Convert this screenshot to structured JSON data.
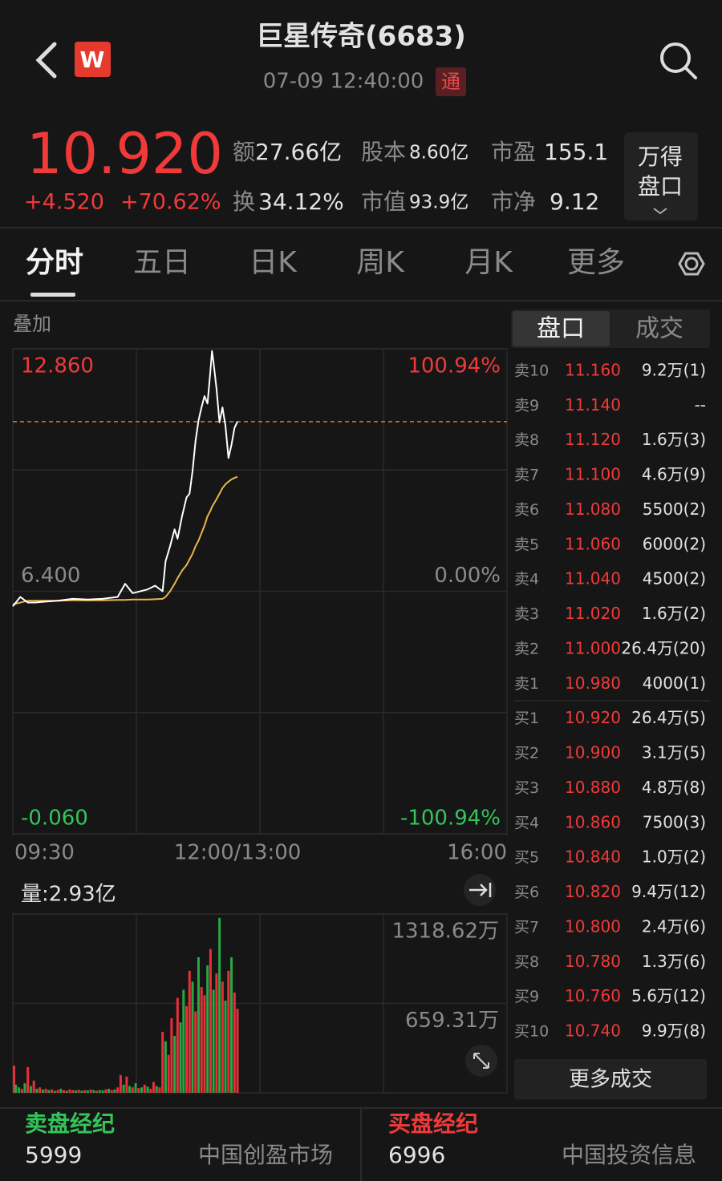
{
  "header": {
    "title": "巨星传奇(6683)",
    "timestamp": "07-09 12:40:00",
    "badge": "通",
    "logo": "W"
  },
  "quote": {
    "price": "10.920",
    "change": "+4.520",
    "change_pct": "+70.62%",
    "stats": [
      {
        "label": "额",
        "value": "27.66亿"
      },
      {
        "label": "股本",
        "value": "8.60亿"
      },
      {
        "label": "市盈",
        "value": "155.1"
      },
      {
        "label": "换",
        "value": "34.12%"
      },
      {
        "label": "市值",
        "value": "93.9亿"
      },
      {
        "label": "市净",
        "value": "9.12"
      }
    ],
    "panel_button": [
      "万得",
      "盘口"
    ]
  },
  "tabs": [
    "分时",
    "五日",
    "日K",
    "周K",
    "月K",
    "更多"
  ],
  "overlay_label": "叠加",
  "chart_data": [
    {
      "type": "line",
      "x": [
        0,
        5,
        10,
        15,
        20,
        30,
        40,
        50,
        60,
        70,
        75,
        80,
        90,
        95,
        100,
        102,
        105,
        108,
        110,
        113,
        116,
        118,
        120,
        122,
        124,
        126,
        128,
        130,
        132,
        133,
        134,
        136,
        138,
        140,
        142,
        144,
        146,
        148,
        150
      ],
      "series": [
        {
          "color": "#ffffff",
          "values": [
            6.0,
            6.25,
            6.1,
            6.1,
            6.12,
            6.15,
            6.2,
            6.18,
            6.2,
            6.25,
            6.6,
            6.35,
            6.45,
            6.55,
            6.4,
            7.2,
            7.6,
            8.05,
            7.8,
            8.4,
            8.9,
            9.0,
            9.6,
            10.4,
            10.95,
            11.3,
            11.6,
            11.4,
            12.3,
            12.8,
            12.5,
            11.8,
            10.9,
            11.3,
            10.8,
            9.95,
            10.3,
            10.75,
            10.92
          ]
        },
        {
          "color": "#e8b64c",
          "values": [
            6.05,
            6.1,
            6.15,
            6.15,
            6.15,
            6.15,
            6.16,
            6.16,
            6.16,
            6.17,
            6.17,
            6.18,
            6.18,
            6.19,
            6.2,
            6.25,
            6.4,
            6.6,
            6.75,
            6.95,
            7.1,
            7.25,
            7.4,
            7.6,
            7.75,
            7.95,
            8.15,
            8.4,
            8.55,
            8.65,
            8.72,
            8.85,
            9.0,
            9.15,
            9.25,
            9.32,
            9.38,
            9.42,
            9.45
          ]
        }
      ],
      "xlim": [
        0,
        330
      ],
      "xticks": [
        {
          "value": 0,
          "label": "09:30"
        },
        {
          "value": 150,
          "label": "12:00/13:00"
        },
        {
          "value": 330,
          "label": "16:00"
        }
      ],
      "ylim": [
        -0.06,
        12.86
      ],
      "yticks": [
        {
          "value": 12.86,
          "label": "12.860"
        },
        {
          "value": 6.4,
          "label": "6.400"
        },
        {
          "value": -0.06,
          "label": "-0.060"
        }
      ],
      "y2lim": [
        -100.94,
        100.94
      ],
      "y2ticks": [
        {
          "value": 100.94,
          "label": "100.94%"
        },
        {
          "value": 0,
          "label": "0.00%"
        },
        {
          "value": -100.94,
          "label": "-100.94%"
        }
      ],
      "reference_line": 10.92
    },
    {
      "type": "bar",
      "title": "量:2.93亿",
      "x": [
        0,
        2,
        4,
        6,
        8,
        10,
        12,
        14,
        16,
        18,
        20,
        22,
        24,
        26,
        28,
        30,
        32,
        34,
        36,
        38,
        40,
        42,
        44,
        46,
        48,
        50,
        52,
        54,
        56,
        58,
        60,
        62,
        64,
        66,
        68,
        70,
        72,
        74,
        76,
        78,
        80,
        82,
        84,
        86,
        88,
        90,
        92,
        94,
        96,
        98,
        100,
        102,
        104,
        106,
        108,
        110,
        112,
        114,
        116,
        118,
        120,
        122,
        124,
        126,
        128,
        130,
        132,
        134,
        136,
        138,
        140,
        142,
        144,
        146,
        148,
        150
      ],
      "values": [
        200,
        60,
        40,
        30,
        70,
        190,
        50,
        90,
        30,
        40,
        25,
        30,
        20,
        25,
        15,
        20,
        30,
        20,
        15,
        25,
        20,
        18,
        22,
        15,
        20,
        18,
        25,
        20,
        15,
        20,
        18,
        25,
        30,
        20,
        25,
        40,
        130,
        60,
        120,
        50,
        40,
        70,
        35,
        40,
        60,
        45,
        30,
        80,
        50,
        40,
        450,
        380,
        280,
        550,
        420,
        700,
        520,
        760,
        640,
        900,
        820,
        600,
        1000,
        780,
        720,
        940,
        1060,
        760,
        880,
        1290,
        820,
        680,
        900,
        1000,
        740,
        620
      ],
      "colors": [
        "#e8303a",
        "#27a844",
        "#27a844",
        "#e8303a",
        "#27a844",
        "#e8303a",
        "#27a844",
        "#e8303a",
        "#27a844",
        "#e8303a",
        "#27a844",
        "#e8303a",
        "#27a844",
        "#e8303a",
        "#27a844",
        "#e8303a",
        "#27a844",
        "#e8303a",
        "#27a844",
        "#e8303a",
        "#e8303a",
        "#27a844",
        "#e8303a",
        "#27a844",
        "#e8303a",
        "#27a844",
        "#e8303a",
        "#27a844",
        "#e8303a",
        "#27a844",
        "#27a844",
        "#e8303a",
        "#27a844",
        "#e8303a",
        "#27a844",
        "#e8303a",
        "#e8303a",
        "#27a844",
        "#e8303a",
        "#27a844",
        "#e8303a",
        "#27a844",
        "#e8303a",
        "#27a844",
        "#e8303a",
        "#27a844",
        "#e8303a",
        "#e8303a",
        "#27a844",
        "#e8303a",
        "#e8303a",
        "#27a844",
        "#e8303a",
        "#e8303a",
        "#27a844",
        "#e8303a",
        "#27a844",
        "#27a844",
        "#e8303a",
        "#e8303a",
        "#27a844",
        "#e8303a",
        "#27a844",
        "#e8303a",
        "#e8303a",
        "#27a844",
        "#e8303a",
        "#27a844",
        "#e8303a",
        "#27a844",
        "#e8303a",
        "#27a844",
        "#e8303a",
        "#27a844",
        "#e8303a",
        "#e8303a"
      ],
      "xlim": [
        0,
        330
      ],
      "ylim": [
        0,
        1318.62
      ],
      "yticks": [
        {
          "value": 1318.62,
          "label": "1318.62万"
        },
        {
          "value": 659.31,
          "label": "659.31万"
        }
      ]
    }
  ],
  "order_book": {
    "tabs": [
      "盘口",
      "成交"
    ],
    "rows": [
      [
        "卖10",
        "11.160",
        "9.2万(1)"
      ],
      [
        "卖9",
        "11.140",
        "--"
      ],
      [
        "卖8",
        "11.120",
        "1.6万(3)"
      ],
      [
        "卖7",
        "11.100",
        "4.6万(9)"
      ],
      [
        "卖6",
        "11.080",
        "5500(2)"
      ],
      [
        "卖5",
        "11.060",
        "6000(2)"
      ],
      [
        "卖4",
        "11.040",
        "4500(2)"
      ],
      [
        "卖3",
        "11.020",
        "1.6万(2)"
      ],
      [
        "卖2",
        "11.000",
        "26.4万(20)"
      ],
      [
        "卖1",
        "10.980",
        "4000(1)"
      ],
      [
        "买1",
        "10.920",
        "26.4万(5)"
      ],
      [
        "买2",
        "10.900",
        "3.1万(5)"
      ],
      [
        "买3",
        "10.880",
        "4.8万(8)"
      ],
      [
        "买4",
        "10.860",
        "7500(3)"
      ],
      [
        "买5",
        "10.840",
        "1.0万(2)"
      ],
      [
        "买6",
        "10.820",
        "9.4万(12)"
      ],
      [
        "买7",
        "10.800",
        "2.4万(6)"
      ],
      [
        "买8",
        "10.780",
        "1.3万(6)"
      ],
      [
        "买9",
        "10.760",
        "5.6万(12)"
      ],
      [
        "买10",
        "10.740",
        "9.9万(8)"
      ]
    ],
    "more_button": "更多成交"
  },
  "brokers": [
    {
      "title": "卖盘经纪",
      "count": "5999",
      "name": "中国创盈市场"
    },
    {
      "title": "买盘经纪",
      "count": "6996",
      "name": "中国投资信息"
    }
  ]
}
